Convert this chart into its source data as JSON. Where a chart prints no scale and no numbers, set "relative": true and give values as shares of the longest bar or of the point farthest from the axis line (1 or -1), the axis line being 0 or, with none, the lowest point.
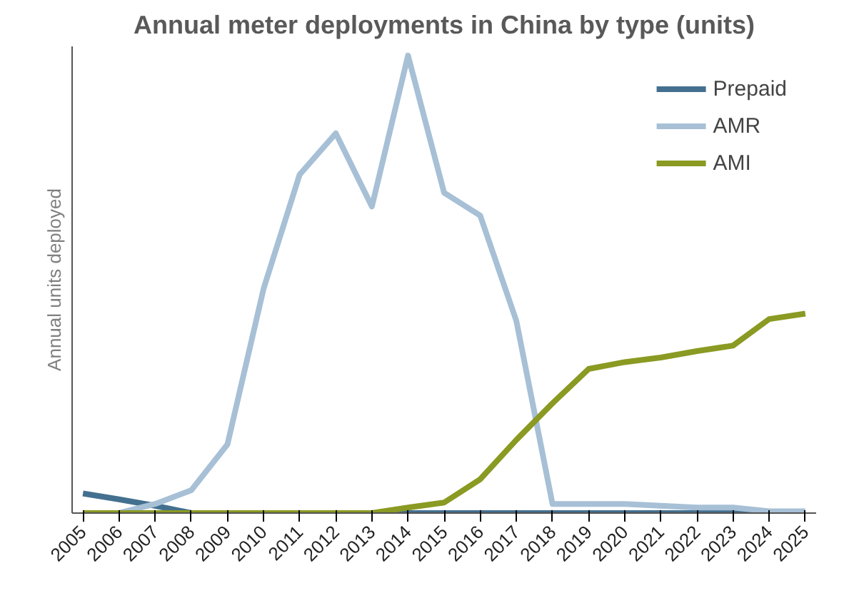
{
  "chart_data": {
    "type": "line",
    "title": "Annual meter deployments in China by type (units)",
    "ylabel": "Annual units deployed",
    "relative": true,
    "categories": [
      "2005",
      "2006",
      "2007",
      "2008",
      "2009",
      "2010",
      "2011",
      "2012",
      "2013",
      "2014",
      "2015",
      "2016",
      "2017",
      "2018",
      "2019",
      "2020",
      "2021",
      "2022",
      "2023",
      "2024",
      "2025"
    ],
    "series": [
      {
        "name": "Prepaid",
        "color": "#44708f",
        "values": [
          0.043,
          0.03,
          0.016,
          0,
          0,
          0,
          0,
          0,
          0,
          0,
          0,
          0,
          0,
          0,
          0,
          0,
          0,
          0,
          0,
          0,
          0
        ]
      },
      {
        "name": "AMR",
        "color": "#a7c0d6",
        "values": [
          0,
          0,
          0.02,
          0.05,
          0.15,
          0.49,
          0.74,
          0.83,
          0.67,
          1.0,
          0.7,
          0.65,
          0.42,
          0.02,
          0.02,
          0.02,
          0.016,
          0.012,
          0.012,
          0.004,
          0.004
        ]
      },
      {
        "name": "AMI",
        "color": "#8a9a22",
        "values": [
          0,
          0,
          0,
          0,
          0,
          0,
          0,
          0,
          0,
          0.012,
          0.023,
          0.074,
          0.16,
          0.24,
          0.315,
          0.33,
          0.34,
          0.354,
          0.366,
          0.424,
          0.436
        ]
      }
    ],
    "legend": "top right",
    "grid": false,
    "marker": "none",
    "line_style": "solid"
  }
}
